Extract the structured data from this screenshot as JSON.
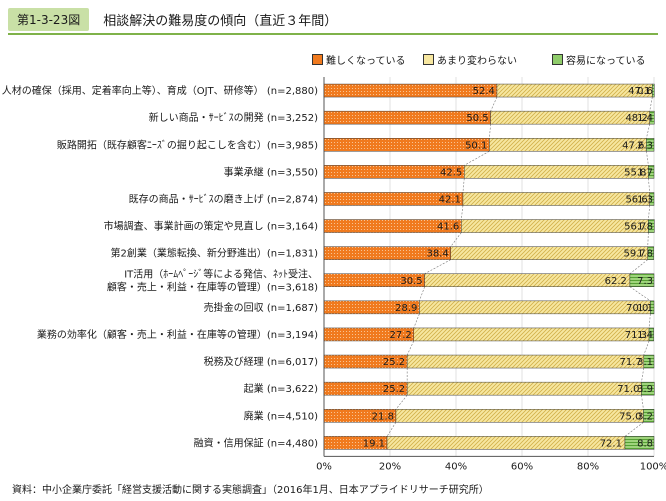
{
  "figure": {
    "number": "第1-3-23図",
    "title": "相談解決の難易度の傾向（直近３年間）",
    "source": "資料：中小企業庁委託「経営支援活動に関する実態調査」（2016年1月、日本アプライドリサーチ研究所）"
  },
  "chart_data": {
    "type": "bar",
    "orientation": "horizontal",
    "stacked": "percent",
    "categories": [
      "人材の確保（採用、定着率向上等）、育成（OJT、研修等） (n=2,880)",
      "新しい商品・ｻｰﾋﾞｽの開発 (n=3,252)",
      "販路開拓（既存顧客ﾆｰｽﾞの掘り起こしを含む）(n=3,985)",
      "事業承継 (n=3,550)",
      "既存の商品・ｻｰﾋﾞｽの磨き上げ (n=2,874)",
      "市場調査、事業計画の策定や見直し (n=3,164)",
      "第2創業（業態転換、新分野進出）(n=1,831)",
      "IT活用（ﾎｰﾑﾍﾟｰｼﾞ等による発信、ﾈｯﾄ受注、顧客・売上・利益・在庫等の管理）(n=3,618)",
      "売掛金の回収 (n=1,687)",
      "業務の効率化（顧客・売上・利益・在庫等の管理）(n=3,194)",
      "税務及び経理 (n=6,017)",
      "起業 (n=3,622)",
      "廃業 (n=4,510)",
      "融資・信用保証 (n=4,480)"
    ],
    "category_lines": [
      [
        "人材の確保（採用、定着率向上等）、育成（OJT、研修等） (n=2,880)"
      ],
      [
        "新しい商品・ｻｰﾋﾞｽの開発 (n=3,252)"
      ],
      [
        "販路開拓（既存顧客ﾆｰｽﾞの掘り起こしを含む）(n=3,985)"
      ],
      [
        "事業承継 (n=3,550)"
      ],
      [
        "既存の商品・ｻｰﾋﾞｽの磨き上げ (n=2,874)"
      ],
      [
        "市場調査、事業計画の策定や見直し (n=3,164)"
      ],
      [
        "第2創業（業態転換、新分野進出）(n=1,831)"
      ],
      [
        "IT活用（ﾎｰﾑﾍﾟｰｼﾞ等による発信、ﾈｯﾄ受注、",
        "顧客・売上・利益・在庫等の管理）(n=3,618)"
      ],
      [
        "売掛金の回収 (n=1,687)"
      ],
      [
        "業務の効率化（顧客・売上・利益・在庫等の管理）(n=3,194)"
      ],
      [
        "税務及び経理 (n=6,017)"
      ],
      [
        "起業 (n=3,622)"
      ],
      [
        "廃業 (n=4,510)"
      ],
      [
        "融資・信用保証 (n=4,480)"
      ]
    ],
    "series": [
      {
        "name": "難しくなっている",
        "color": "#f07a1e",
        "pattern": "dots",
        "values": [
          52.4,
          50.5,
          50.1,
          42.5,
          42.1,
          41.6,
          38.4,
          30.5,
          28.9,
          27.2,
          25.2,
          25.2,
          21.8,
          19.1
        ]
      },
      {
        "name": "あまり変わらない",
        "color": "#f7e7a0",
        "pattern": "diagonal",
        "values": [
          47.1,
          48.2,
          47.6,
          55.8,
          56.6,
          56.7,
          59.7,
          62.2,
          70.0,
          71.3,
          71.7,
          71.0,
          75.0,
          72.1
        ]
      },
      {
        "name": "容易になっている",
        "color": "#8fcc6a",
        "pattern": "horizontal",
        "values": [
          0.6,
          1.4,
          2.3,
          1.7,
          1.3,
          1.8,
          1.8,
          7.3,
          1.1,
          1.4,
          3.1,
          3.9,
          3.2,
          8.8
        ]
      }
    ],
    "value_labels": [
      [
        "52.4",
        "47.1",
        "0.6"
      ],
      [
        "50.5",
        "48.2",
        "1.4"
      ],
      [
        "50.1",
        "47.6",
        "2.3"
      ],
      [
        "42.5",
        "55.8",
        "1.7"
      ],
      [
        "42.1",
        "56.6",
        "1.3"
      ],
      [
        "41.6",
        "56.7",
        "1.8"
      ],
      [
        "38.4",
        "59.7",
        "1.8"
      ],
      [
        "30.5",
        "62.2",
        "7.3"
      ],
      [
        "28.9",
        "70.0",
        "1.1"
      ],
      [
        "27.2",
        "71.3",
        "1.4"
      ],
      [
        "25.2",
        "71.7",
        "3.1"
      ],
      [
        "25.2",
        "71.0",
        "3.9"
      ],
      [
        "21.8",
        "75.0",
        "3.2"
      ],
      [
        "19.1",
        "72.1",
        "8.8"
      ]
    ],
    "xlim": [
      0,
      100
    ],
    "xticks": [
      0,
      20,
      40,
      60,
      80,
      100
    ],
    "xtick_labels": [
      "0%",
      "20%",
      "40%",
      "60%",
      "80%",
      "100%"
    ],
    "legend_position": "top-right",
    "connector_lines": true
  }
}
